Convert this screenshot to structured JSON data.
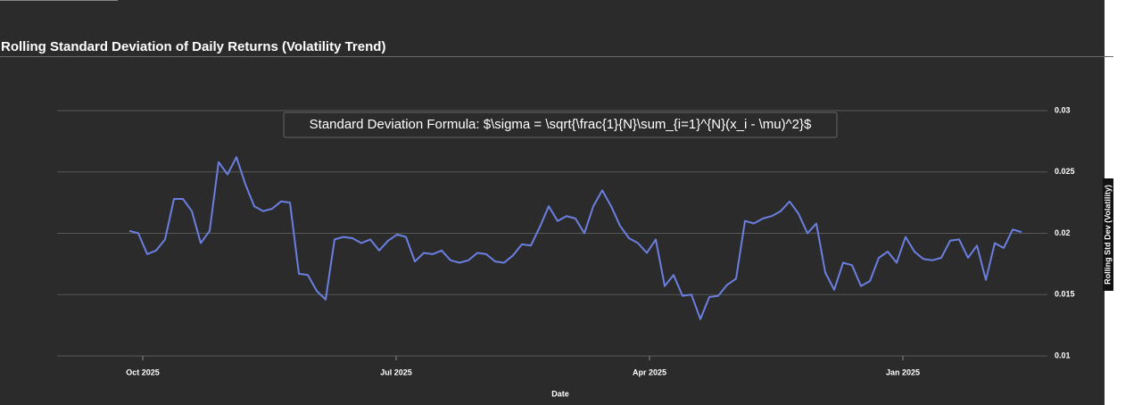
{
  "chart_data": {
    "type": "line",
    "title": "Rolling Standard Deviation of Daily Returns (Volatility Trend)",
    "annotation": "Standard Deviation Formula: $\\sigma = \\sqrt{\\frac{1}{N}\\sum_{i=1}^{N}(x_i - \\mu)^2}$",
    "x_label": "Date",
    "y_label": "Rolling Std Dev (Volatility)",
    "color": "#6b7fe0",
    "values": [
      0.0202,
      0.02,
      0.0183,
      0.0186,
      0.0195,
      0.0228,
      0.0228,
      0.0218,
      0.0192,
      0.0202,
      0.0258,
      0.0248,
      0.0262,
      0.024,
      0.0222,
      0.0218,
      0.022,
      0.0226,
      0.0225,
      0.0167,
      0.0166,
      0.0153,
      0.0146,
      0.0195,
      0.0197,
      0.0196,
      0.0192,
      0.0195,
      0.0186,
      0.0194,
      0.0199,
      0.0197,
      0.0177,
      0.0184,
      0.0183,
      0.0186,
      0.0178,
      0.0176,
      0.0178,
      0.0184,
      0.0183,
      0.0177,
      0.0176,
      0.0182,
      0.0191,
      0.019,
      0.0205,
      0.0222,
      0.021,
      0.0214,
      0.0212,
      0.02,
      0.0222,
      0.0235,
      0.0222,
      0.0206,
      0.0196,
      0.0192,
      0.0184,
      0.0195,
      0.0157,
      0.0166,
      0.0149,
      0.015,
      0.013,
      0.0148,
      0.0149,
      0.0158,
      0.0163,
      0.021,
      0.0208,
      0.0212,
      0.0214,
      0.0218,
      0.0226,
      0.0216,
      0.02,
      0.0208,
      0.0168,
      0.0154,
      0.0176,
      0.0174,
      0.0157,
      0.0161,
      0.018,
      0.0185,
      0.0176,
      0.0197,
      0.0185,
      0.0179,
      0.0178,
      0.018,
      0.0194,
      0.0195,
      0.018,
      0.019,
      0.0162,
      0.0192,
      0.0188,
      0.0203,
      0.0201
    ],
    "xlim": [
      -8.1,
      102.9
    ],
    "xticks": [
      {
        "value": 1.5,
        "label": "Oct 2025"
      },
      {
        "value": 29.9,
        "label": "Jul 2025"
      },
      {
        "value": 58.3,
        "label": "Apr 2025"
      },
      {
        "value": 86.7,
        "label": "Jan 2025"
      }
    ],
    "ylim": [
      0.01,
      0.03
    ],
    "yticks": [
      0.01,
      0.015,
      0.02,
      0.025,
      0.03
    ],
    "grid": true
  }
}
